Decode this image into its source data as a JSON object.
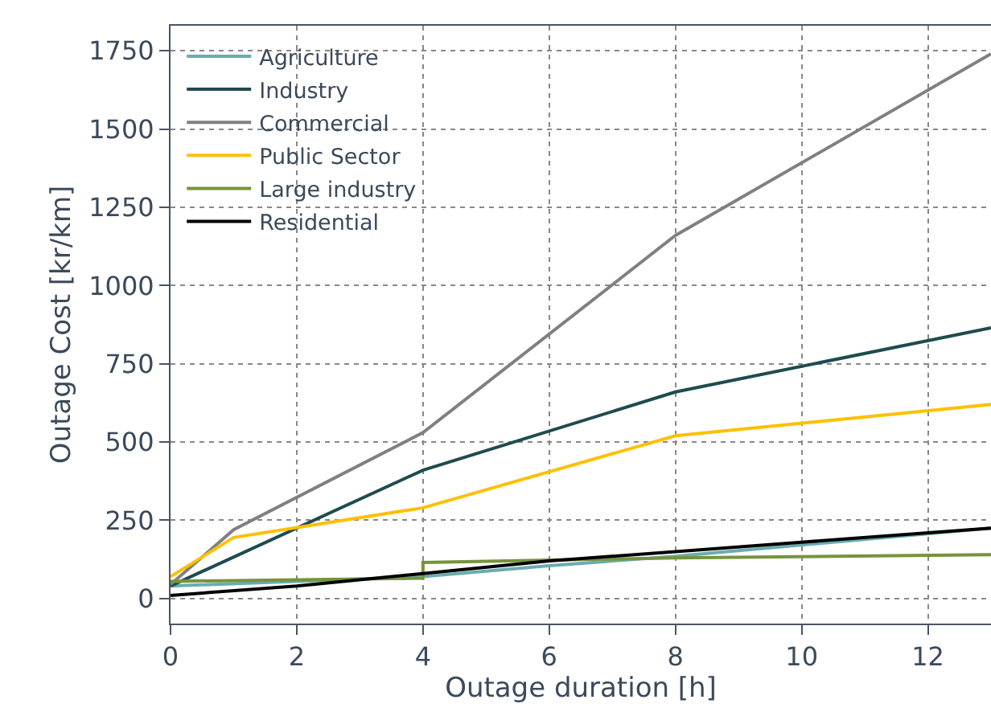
{
  "chart_data": {
    "type": "line",
    "xlabel": "Outage duration [h]",
    "ylabel": "Outage Cost [kr/km]",
    "xlim": [
      0,
      13
    ],
    "xticks": [
      0,
      2,
      4,
      6,
      8,
      10,
      12
    ],
    "ylim": [
      -80,
      1830
    ],
    "yticks": [
      0,
      250,
      500,
      750,
      1000,
      1250,
      1500,
      1750
    ],
    "grid": true,
    "legend": "top left",
    "series": [
      {
        "name": "Agriculture",
        "color": "#6aacb0",
        "x": [
          0,
          4,
          6,
          8,
          13
        ],
        "values": [
          40,
          70,
          105,
          135,
          225
        ]
      },
      {
        "name": "Industry",
        "color": "#1f4b4f",
        "x": [
          0,
          4,
          8,
          13
        ],
        "values": [
          40,
          410,
          660,
          865
        ]
      },
      {
        "name": "Commercial",
        "color": "#808080",
        "x": [
          0,
          1,
          4,
          8,
          13
        ],
        "values": [
          45,
          220,
          530,
          1160,
          1740
        ]
      },
      {
        "name": "Public Sector",
        "color": "#ffc000",
        "x": [
          0,
          1,
          4,
          8,
          13
        ],
        "values": [
          70,
          195,
          290,
          520,
          620
        ]
      },
      {
        "name": "Large industry",
        "color": "#77933c",
        "x": [
          0,
          4,
          4,
          8,
          13
        ],
        "values": [
          55,
          65,
          115,
          130,
          140
        ]
      },
      {
        "name": "Residential",
        "color": "#000000",
        "x": [
          0,
          2,
          4,
          6,
          8,
          10,
          13
        ],
        "values": [
          10,
          40,
          80,
          120,
          150,
          180,
          225
        ]
      }
    ]
  }
}
